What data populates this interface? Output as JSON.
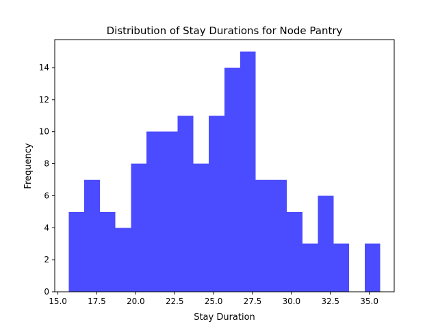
{
  "chart_data": {
    "type": "bar",
    "title": "Distribution of Stay Durations for Node Pantry",
    "xlabel": "Stay Duration",
    "ylabel": "Frequency",
    "bar_color": "#4b4bff",
    "xlim": [
      14.8,
      36.6
    ],
    "ylim": [
      0,
      15.75
    ],
    "bin_edges": [
      15.7,
      16.7,
      17.7,
      18.7,
      19.7,
      20.7,
      21.7,
      22.7,
      23.7,
      24.7,
      25.7,
      26.7,
      27.7,
      28.7,
      29.7,
      30.7,
      31.7,
      32.7,
      33.7,
      34.7,
      35.7
    ],
    "values": [
      5,
      7,
      5,
      4,
      8,
      10,
      10,
      11,
      8,
      11,
      14,
      15,
      7,
      7,
      5,
      3,
      6,
      3,
      0,
      3
    ],
    "x_ticks": [
      15.0,
      17.5,
      20.0,
      22.5,
      25.0,
      27.5,
      30.0,
      32.5,
      35.0
    ],
    "x_tick_labels": [
      "15.0",
      "17.5",
      "20.0",
      "22.5",
      "25.0",
      "27.5",
      "30.0",
      "32.5",
      "35.0"
    ],
    "y_ticks": [
      0,
      2,
      4,
      6,
      8,
      10,
      12,
      14
    ],
    "y_tick_labels": [
      "0",
      "2",
      "4",
      "6",
      "8",
      "10",
      "12",
      "14"
    ],
    "grid": false,
    "legend": "none"
  }
}
